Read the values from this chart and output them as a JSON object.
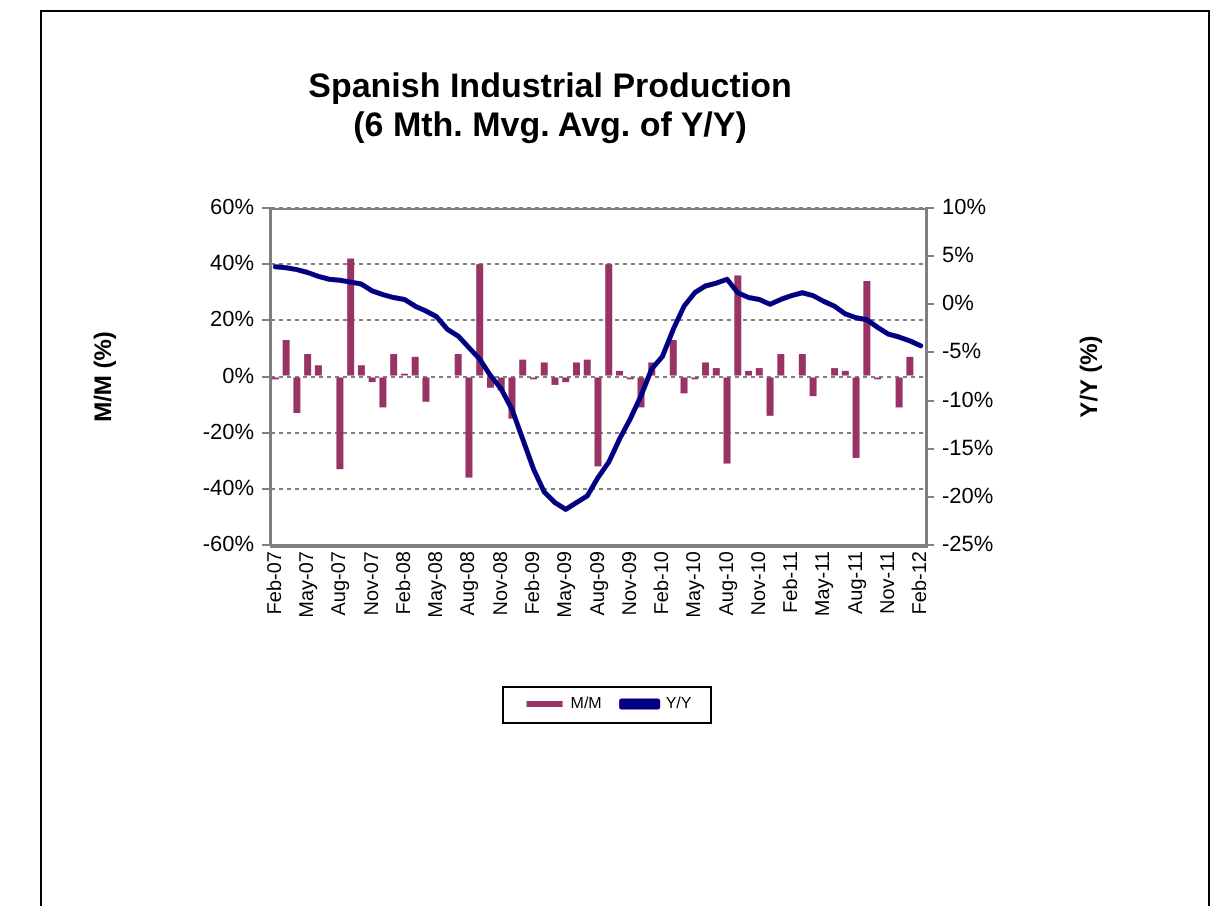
{
  "chart_data": {
    "type": "bar",
    "title": "Spanish Industrial Production\n(6 Mth. Mvg. Avg. of Y/Y)",
    "ylabel": "M/M (%)",
    "y2label": "Y/Y (%)",
    "categories": [
      "Feb-07",
      null,
      null,
      "May-07",
      null,
      null,
      "Aug-07",
      null,
      null,
      "Nov-07",
      null,
      null,
      "Feb-08",
      null,
      null,
      "May-08",
      null,
      null,
      "Aug-08",
      null,
      null,
      "Nov-08",
      null,
      null,
      "Feb-09",
      null,
      null,
      "May-09",
      null,
      null,
      "Aug-09",
      null,
      null,
      "Nov-09",
      null,
      null,
      "Feb-10",
      null,
      null,
      "May-10",
      null,
      null,
      "Aug-10",
      null,
      null,
      "Nov-10",
      null,
      null,
      "Feb-11",
      null,
      null,
      "May-11",
      null,
      null,
      "Aug-11",
      null,
      null,
      "Nov-11",
      null,
      null,
      "Feb-12"
    ],
    "series": [
      {
        "name": "M/M",
        "color": "#993366",
        "values": [
          -1,
          13,
          -13,
          8,
          4,
          0,
          -33,
          42,
          4,
          -2,
          -11,
          8,
          1,
          7,
          -9,
          0,
          0,
          8,
          -36,
          40,
          -4,
          -5,
          -15,
          6,
          -1,
          5,
          -3,
          -2,
          5,
          6,
          -32,
          40,
          2,
          -1,
          -11,
          5,
          0,
          13,
          -6,
          -1,
          5,
          3,
          -31,
          36,
          2,
          3,
          -14,
          8,
          0,
          8,
          -7,
          0,
          3,
          2,
          -29,
          34,
          -1,
          0,
          -11,
          7,
          0
        ]
      },
      {
        "name": "Y/Y",
        "type": "line",
        "axis": "y2",
        "color": "#000080",
        "values": [
          3.9,
          3.8,
          3.6,
          3.3,
          2.9,
          2.6,
          2.5,
          2.3,
          2.1,
          1.4,
          1.0,
          0.7,
          0.5,
          -0.2,
          -0.7,
          -1.3,
          -2.6,
          -3.3,
          -4.5,
          -5.7,
          -7.4,
          -8.8,
          -10.9,
          -14.0,
          -17.1,
          -19.5,
          -20.6,
          -21.3,
          -20.6,
          -19.9,
          -18.0,
          -16.4,
          -14.0,
          -11.9,
          -9.5,
          -6.7,
          -5.4,
          -2.6,
          -0.2,
          1.2,
          1.9,
          2.2,
          2.6,
          1.2,
          0.7,
          0.5,
          0.0,
          0.5,
          0.9,
          1.2,
          0.9,
          0.3,
          -0.2,
          -1.0,
          -1.4,
          -1.6,
          -2.4,
          -3.1,
          -3.4,
          -3.8,
          -4.3
        ]
      }
    ],
    "ylim": [
      -60,
      60
    ],
    "yticks": [
      {
        "value": -60,
        "label": "-60%"
      },
      {
        "value": -40,
        "label": "-40%"
      },
      {
        "value": -20,
        "label": "-20%"
      },
      {
        "value": 0,
        "label": "0%"
      },
      {
        "value": 20,
        "label": "20%"
      },
      {
        "value": 40,
        "label": "40%"
      },
      {
        "value": 60,
        "label": "60%"
      }
    ],
    "y2lim": [
      -25,
      10
    ],
    "y2ticks": [
      {
        "value": -25,
        "label": "-25%"
      },
      {
        "value": -20,
        "label": "-20%"
      },
      {
        "value": -15,
        "label": "-15%"
      },
      {
        "value": -10,
        "label": "-10%"
      },
      {
        "value": -5,
        "label": "-5%"
      },
      {
        "value": 0,
        "label": "0%"
      },
      {
        "value": 5,
        "label": "5%"
      },
      {
        "value": 10,
        "label": "10%"
      }
    ],
    "grid": "y",
    "legend": "bottom",
    "marker": "none"
  }
}
